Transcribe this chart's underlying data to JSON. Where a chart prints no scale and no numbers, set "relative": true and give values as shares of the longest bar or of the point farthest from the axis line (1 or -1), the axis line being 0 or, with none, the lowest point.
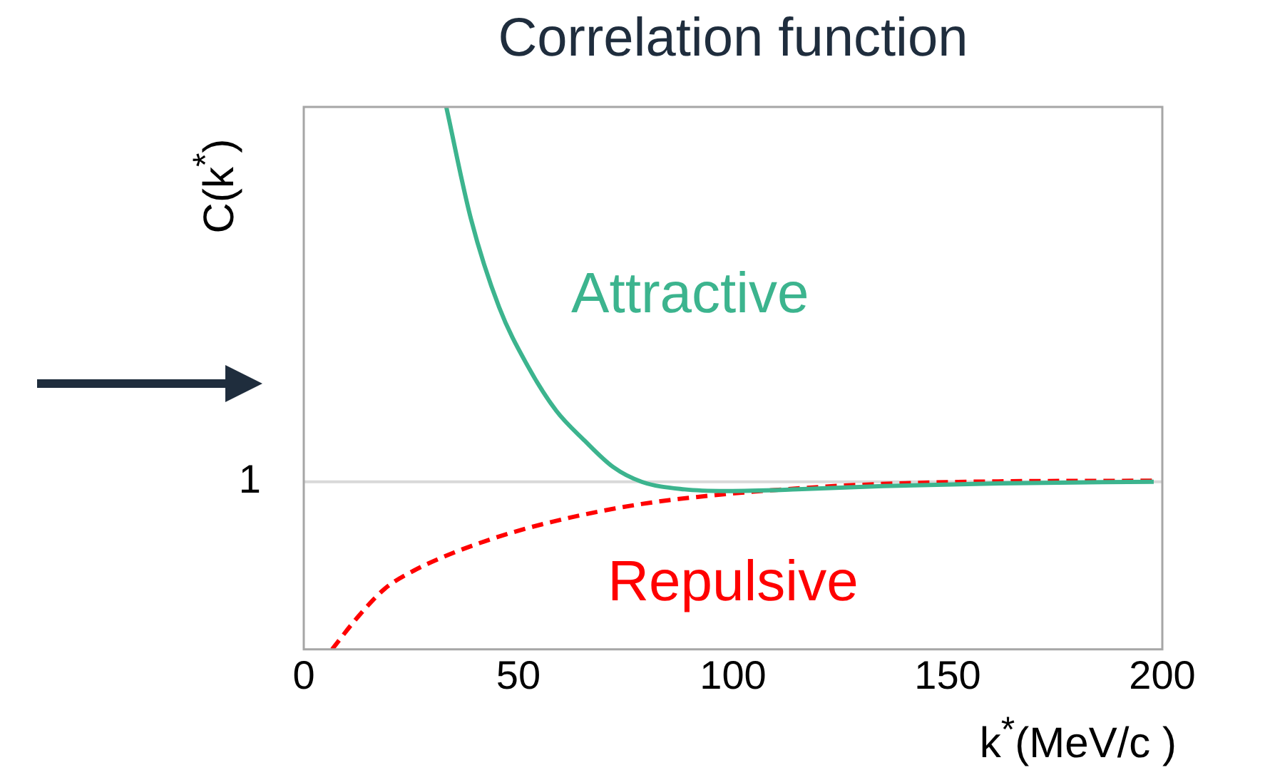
{
  "chart_data": {
    "type": "line",
    "title": "Correlation function",
    "xlabel": "k$^{*}$(MeV/c )",
    "ylabel": "C(k$^{*}$)",
    "relative": true,
    "xlim": [
      0,
      200
    ],
    "xticks": [
      0,
      50,
      100,
      150,
      200
    ],
    "grid": false,
    "legend": false,
    "marker": "none",
    "ref_lines": [
      {
        "axis": "y",
        "value": 0.309,
        "color": "#d9d9d9"
      }
    ],
    "annotations": [
      "1"
    ],
    "series": [
      {
        "name": "Attractive",
        "color": "#3cb48e",
        "line_style": "solid",
        "x": [
          33.2,
          38.9,
          45.5,
          52.2,
          58.8,
          65.4,
          72.1,
          78.7,
          88.7,
          98.7,
          115,
          135,
          162,
          198
        ],
        "values": [
          1.0,
          0.795,
          0.631,
          0.522,
          0.44,
          0.385,
          0.336,
          0.309,
          0.295,
          0.292,
          0.295,
          0.301,
          0.306,
          0.309
        ]
      },
      {
        "name": "Repulsive",
        "color": "#ff0000",
        "line_style": "dashed",
        "x": [
          6.6,
          12.3,
          18.9,
          25.6,
          35.5,
          48.8,
          62.1,
          78.7,
          95.3,
          112,
          128.6,
          155,
          198
        ],
        "values": [
          0,
          0.057,
          0.112,
          0.145,
          0.18,
          0.216,
          0.243,
          0.268,
          0.284,
          0.295,
          0.303,
          0.309,
          0.311
        ]
      }
    ]
  }
}
